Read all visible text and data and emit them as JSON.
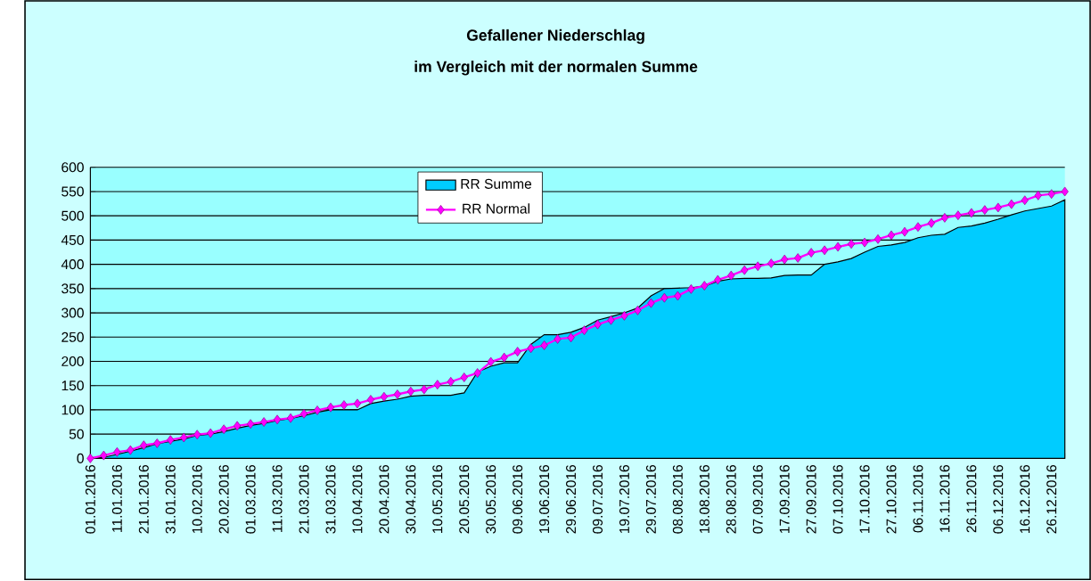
{
  "chart_data": {
    "type": "area",
    "title": "Gefallener Niederschlag",
    "subtitle": "im Vergleich mit der normalen Summe",
    "categories": [
      "01.01.2016",
      null,
      "11.01.2016",
      null,
      "21.01.2016",
      null,
      "31.01.2016",
      null,
      "10.02.2016",
      null,
      "20.02.2016",
      null,
      "01.03.2016",
      null,
      "11.03.2016",
      null,
      "21.03.2016",
      null,
      "31.03.2016",
      null,
      "10.04.2016",
      null,
      "20.04.2016",
      null,
      "30.04.2016",
      null,
      "10.05.2016",
      null,
      "20.05.2016",
      null,
      "30.05.2016",
      null,
      "09.06.2016",
      null,
      "19.06.2016",
      null,
      "29.06.2016",
      null,
      "09.07.2016",
      null,
      "19.07.2016",
      null,
      "29.07.2016",
      null,
      "08.08.2016",
      null,
      "18.08.2016",
      null,
      "28.08.2016",
      null,
      "07.09.2016",
      null,
      "17.09.2016",
      null,
      "27.09.2016",
      null,
      "07.10.2016",
      null,
      "17.10.2016",
      null,
      "27.10.2016",
      null,
      "06.11.2016",
      null,
      "16.11.2016",
      null,
      "26.11.2016",
      null,
      "06.12.2016",
      null,
      "16.12.2016",
      null,
      "26.12.2016",
      null
    ],
    "series": [
      {
        "name": "RR Summe",
        "color": "#00ccff",
        "values": [
          0,
          2,
          8,
          15,
          22,
          30,
          35,
          40,
          47,
          50,
          55,
          62,
          68,
          72,
          78,
          82,
          88,
          95,
          100,
          100,
          100,
          113,
          118,
          122,
          128,
          130,
          130,
          130,
          135,
          178,
          190,
          197,
          197,
          235,
          255,
          255,
          260,
          270,
          285,
          292,
          300,
          310,
          335,
          350,
          351,
          352,
          355,
          365,
          370,
          371,
          371,
          372,
          377,
          378,
          378,
          400,
          405,
          412,
          425,
          437,
          440,
          445,
          455,
          460,
          462,
          476,
          479,
          485,
          493,
          502,
          510,
          515,
          520,
          533
        ]
      },
      {
        "name": "RR Normal",
        "type": "line",
        "color": "#ff00ff",
        "marker": "diamond",
        "values": [
          0,
          6,
          13,
          17,
          27,
          31,
          38,
          43,
          49,
          52,
          60,
          67,
          71,
          75,
          80,
          83,
          92,
          99,
          105,
          110,
          113,
          121,
          127,
          132,
          138,
          142,
          152,
          158,
          167,
          176,
          199,
          208,
          220,
          227,
          233,
          246,
          249,
          264,
          276,
          285,
          294,
          305,
          320,
          331,
          335,
          349,
          356,
          368,
          377,
          388,
          396,
          402,
          410,
          413,
          424,
          429,
          436,
          442,
          445,
          452,
          460,
          467,
          477,
          485,
          496,
          501,
          506,
          512,
          517,
          524,
          532,
          542,
          545,
          550
        ]
      }
    ],
    "ylim": [
      0,
      600
    ],
    "yticks": [
      0,
      50,
      100,
      150,
      200,
      250,
      300,
      350,
      400,
      450,
      500,
      550,
      600
    ],
    "grid": "y",
    "legend": "top"
  }
}
